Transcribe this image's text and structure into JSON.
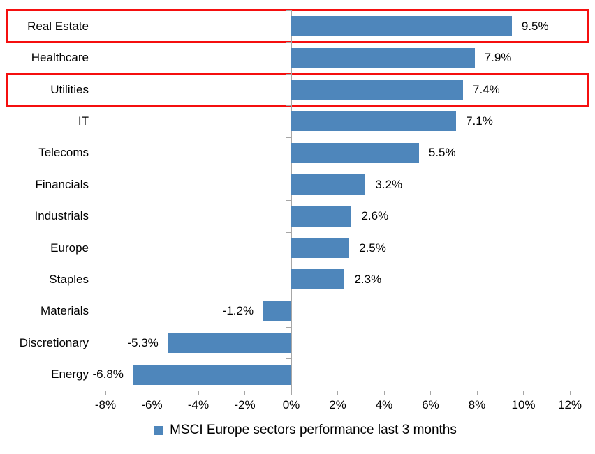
{
  "chart_data": {
    "type": "bar",
    "orientation": "horizontal",
    "title": "",
    "xlabel": "",
    "ylabel": "",
    "categories": [
      "Real Estate",
      "Healthcare",
      "Utilities",
      "IT",
      "Telecoms",
      "Financials",
      "Industrials",
      "Europe",
      "Staples",
      "Materials",
      "Discretionary",
      "Energy"
    ],
    "values": [
      9.5,
      7.9,
      7.4,
      7.1,
      5.5,
      3.2,
      2.6,
      2.5,
      2.3,
      -1.2,
      -5.3,
      -6.8
    ],
    "value_labels": [
      "9.5%",
      "7.9%",
      "7.4%",
      "7.1%",
      "5.5%",
      "3.2%",
      "2.6%",
      "2.5%",
      "2.3%",
      "-1.2%",
      "-5.3%",
      "-6.8%"
    ],
    "xlim": [
      -8,
      12
    ],
    "x_ticks": [
      {
        "value": -8,
        "label": "-8%"
      },
      {
        "value": -6,
        "label": "-6%"
      },
      {
        "value": -4,
        "label": "-4%"
      },
      {
        "value": -2,
        "label": "-2%"
      },
      {
        "value": 0,
        "label": "0%"
      },
      {
        "value": 2,
        "label": "2%"
      },
      {
        "value": 4,
        "label": "4%"
      },
      {
        "value": 6,
        "label": "6%"
      },
      {
        "value": 8,
        "label": "8%"
      },
      {
        "value": 10,
        "label": "10%"
      },
      {
        "value": 12,
        "label": "12%"
      }
    ],
    "grid": false,
    "legend": {
      "label": "MSCI Europe sectors performance last 3 months",
      "position": "bottom"
    },
    "bar_color": "#4E86BB",
    "axis_color": "#A6A6A6",
    "highlight_box_color": "#F50F0F",
    "highlighted_categories": [
      "Real Estate",
      "Utilities"
    ]
  }
}
